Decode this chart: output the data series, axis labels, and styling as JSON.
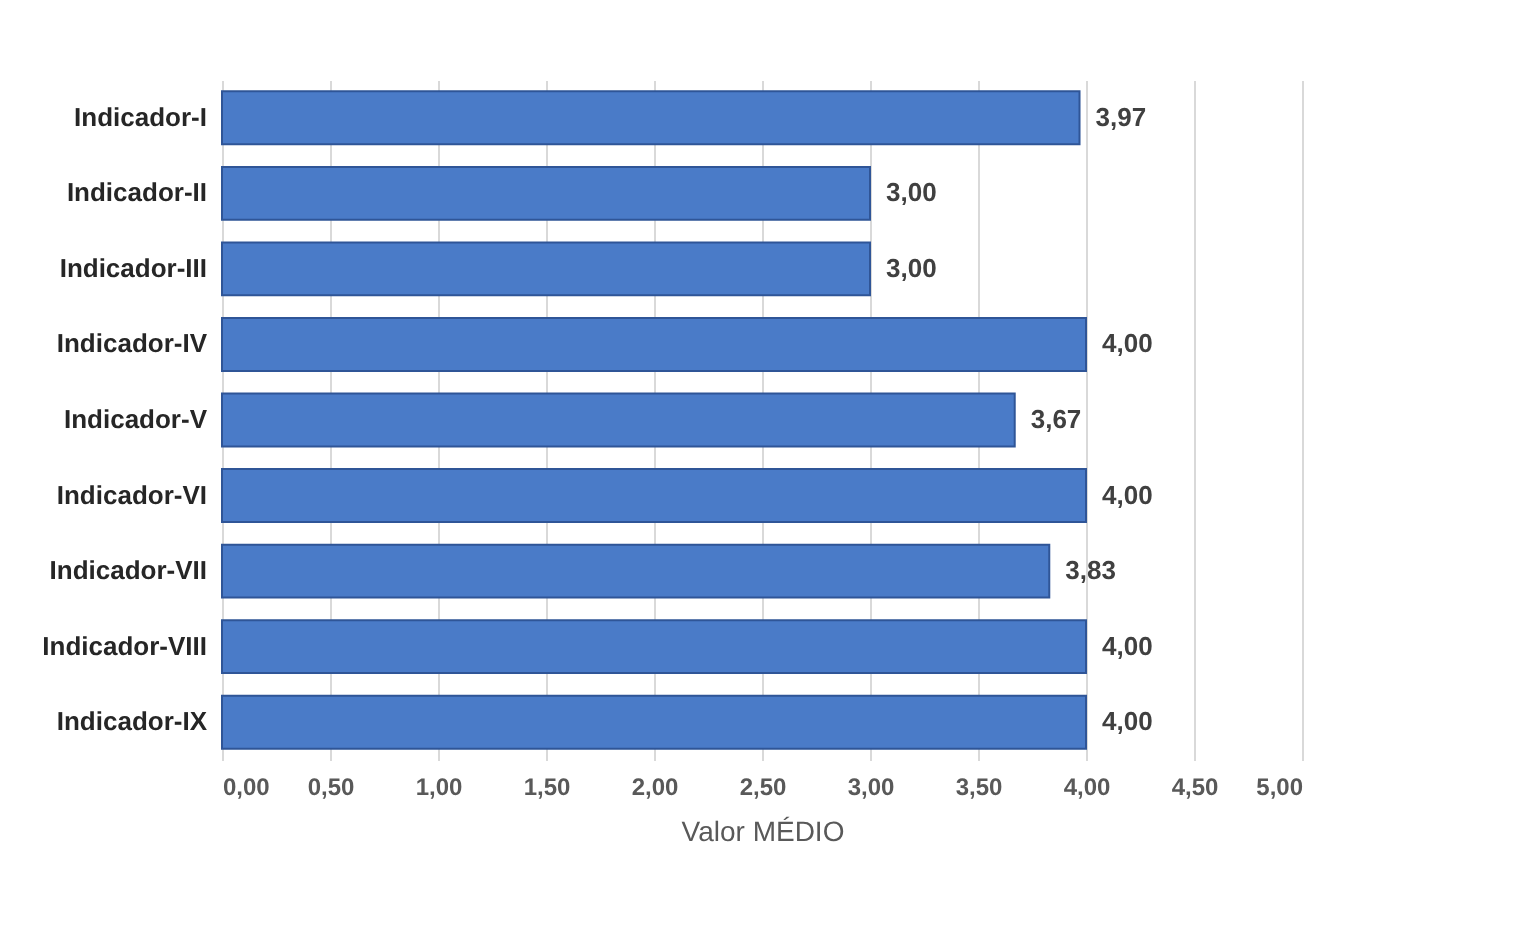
{
  "chart_data": {
    "type": "bar",
    "orientation": "horizontal",
    "xlabel": "Valor MÉDIO",
    "categories": [
      "Indicador-I",
      "Indicador-II",
      "Indicador-III",
      "Indicador-IV",
      "Indicador-V",
      "Indicador-VI",
      "Indicador-VII",
      "Indicador-VIII",
      "Indicador-IX"
    ],
    "values": [
      3.97,
      3.0,
      3.0,
      4.0,
      3.67,
      4.0,
      3.83,
      4.0,
      4.0
    ],
    "value_labels": [
      "3,97",
      "3,00",
      "3,00",
      "4,00",
      "3,67",
      "4,00",
      "3,83",
      "4,00",
      "4,00"
    ],
    "color": "#4a7bc8",
    "xlim": [
      0,
      5
    ],
    "xticks": [
      {
        "value": 0,
        "label": "0,00"
      },
      {
        "value": 0.5,
        "label": "0,50"
      },
      {
        "value": 1,
        "label": "1,00"
      },
      {
        "value": 1.5,
        "label": "1,50"
      },
      {
        "value": 2,
        "label": "2,00"
      },
      {
        "value": 2.5,
        "label": "2,50"
      },
      {
        "value": 3,
        "label": "3,00"
      },
      {
        "value": 3.5,
        "label": "3,50"
      },
      {
        "value": 4,
        "label": "4,00"
      },
      {
        "value": 4.5,
        "label": "4,50"
      },
      {
        "value": 5,
        "label": "5,00"
      }
    ],
    "grid": "x"
  }
}
